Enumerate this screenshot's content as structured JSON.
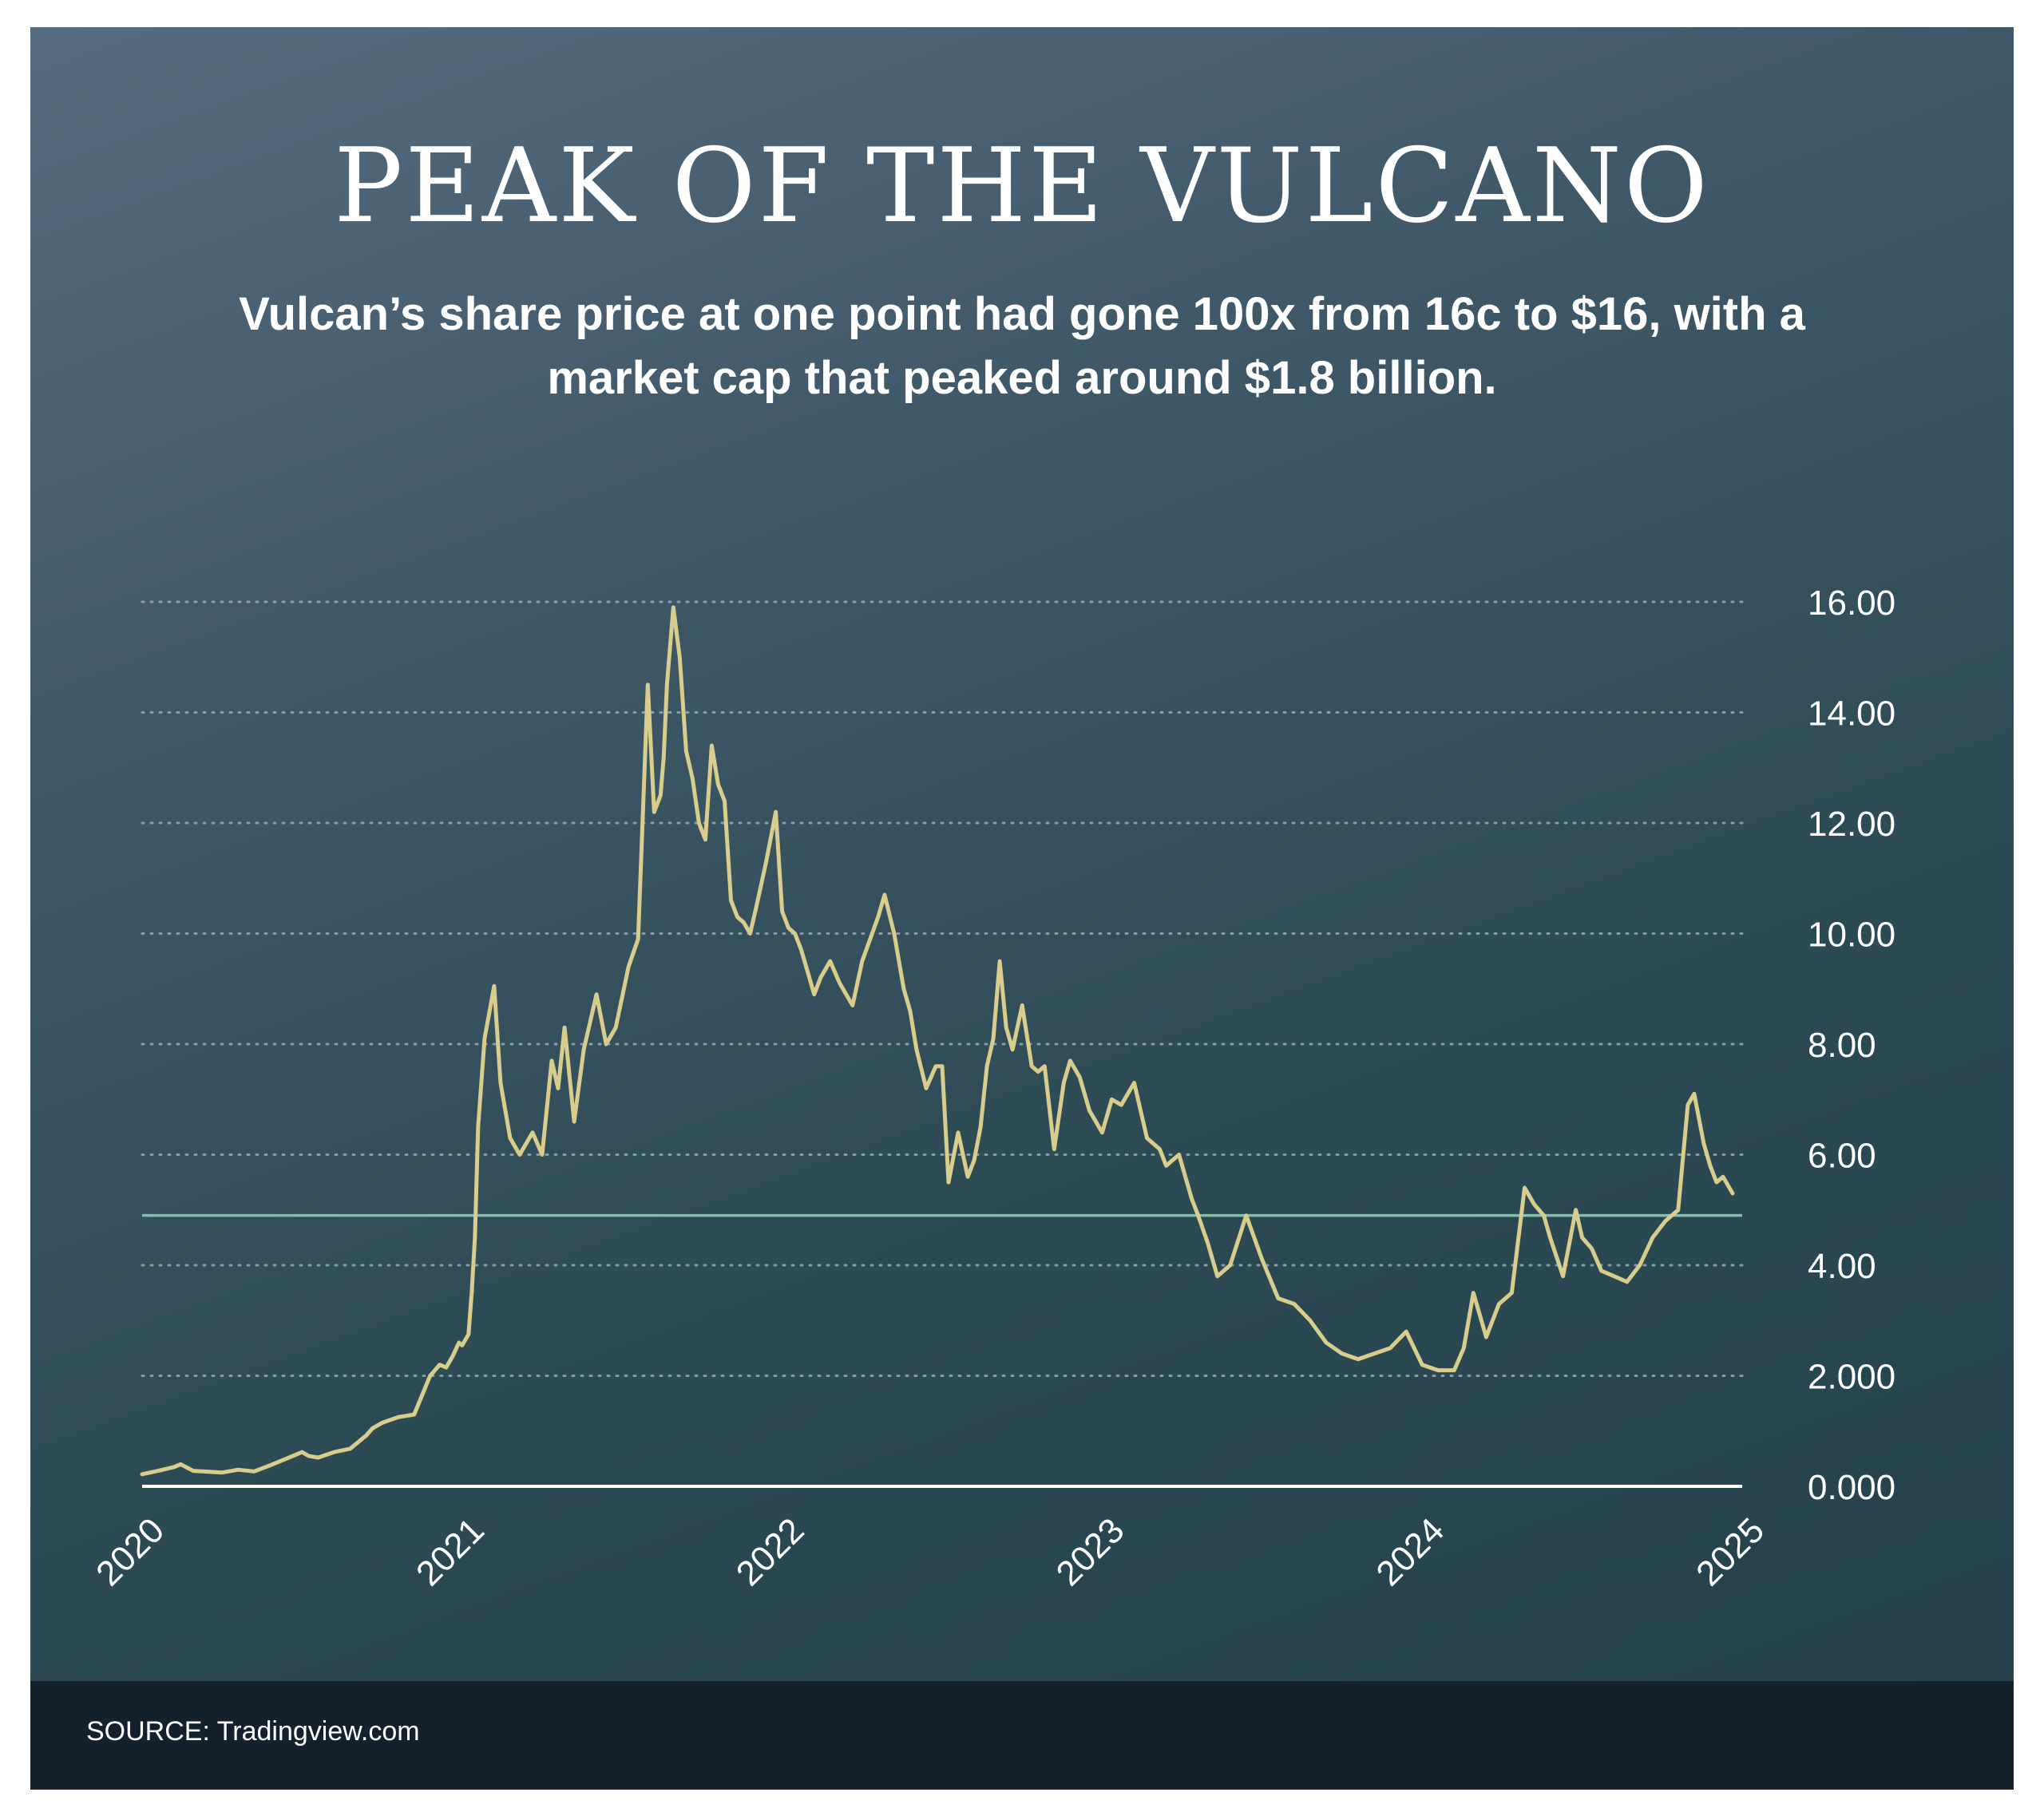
{
  "header": {
    "title": "PEAK OF THE VULCANO",
    "subtitle": "Vulcan’s share price at one point had gone 100x from 16c to $16, with a market cap that peaked around $1.8 billion."
  },
  "footer": {
    "source": "SOURCE: Tradingview.com"
  },
  "chart_data": {
    "type": "line",
    "title": "PEAK OF THE VULCANO",
    "xlabel": "",
    "ylabel": "",
    "x_range": [
      2020.0,
      2025.0
    ],
    "ylim": [
      0,
      16
    ],
    "x_ticks": [
      "2020",
      "2021",
      "2022",
      "2023",
      "2024",
      "2025"
    ],
    "y_ticks": [
      {
        "value": 0,
        "label": "0.000"
      },
      {
        "value": 2,
        "label": "2.000"
      },
      {
        "value": 4,
        "label": "4.00"
      },
      {
        "value": 6,
        "label": "6.00"
      },
      {
        "value": 8,
        "label": "8.00"
      },
      {
        "value": 10,
        "label": "10.00"
      },
      {
        "value": 12,
        "label": "12.00"
      },
      {
        "value": 14,
        "label": "14.00"
      },
      {
        "value": 16,
        "label": "16.00"
      }
    ],
    "grid": true,
    "grid_style": "dotted horizontal",
    "reference_line": {
      "y": 4.9,
      "color": "#7ec4a4"
    },
    "colors": {
      "line": "#d8cd8c",
      "axis": "#ffffff",
      "grid": "#9fb0b8"
    },
    "series": [
      {
        "x": [
          2020.0,
          2020.05,
          2020.1,
          2020.12,
          2020.16,
          2020.25,
          2020.3,
          2020.35,
          2020.4,
          2020.45,
          2020.5,
          2020.52,
          2020.55,
          2020.6,
          2020.65,
          2020.7,
          2020.72,
          2020.75,
          2020.8,
          2020.85,
          2020.9,
          2020.93,
          2020.95,
          2020.97,
          2020.99,
          2021.0,
          2021.02,
          2021.03,
          2021.04,
          2021.05,
          2021.07,
          2021.1,
          2021.12,
          2021.15,
          2021.18,
          2021.22,
          2021.25,
          2021.28,
          2021.3,
          2021.32,
          2021.35,
          2021.38,
          2021.42,
          2021.45,
          2021.48,
          2021.52,
          2021.55,
          2021.58,
          2021.6,
          2021.62,
          2021.63,
          2021.64,
          2021.66,
          2021.68,
          2021.7,
          2021.72,
          2021.74,
          2021.76,
          2021.78,
          2021.8,
          2021.82,
          2021.84,
          2021.86,
          2021.88,
          2021.9,
          2021.92,
          2021.95,
          2021.98,
          2022.0,
          2022.02,
          2022.04,
          2022.06,
          2022.08,
          2022.1,
          2022.12,
          2022.15,
          2022.18,
          2022.22,
          2022.25,
          2022.3,
          2022.32,
          2022.35,
          2022.38,
          2022.4,
          2022.42,
          2022.45,
          2022.48,
          2022.5,
          2022.52,
          2022.55,
          2022.58,
          2022.6,
          2022.62,
          2022.64,
          2022.66,
          2022.68,
          2022.7,
          2022.72,
          2022.75,
          2022.78,
          2022.8,
          2022.82,
          2022.85,
          2022.88,
          2022.9,
          2022.93,
          2022.96,
          2023.0,
          2023.03,
          2023.06,
          2023.1,
          2023.14,
          2023.18,
          2023.2,
          2023.24,
          2023.28,
          2023.3,
          2023.33,
          2023.36,
          2023.4,
          2023.45,
          2023.5,
          2023.55,
          2023.6,
          2023.65,
          2023.7,
          2023.75,
          2023.8,
          2023.85,
          2023.9,
          2023.95,
          2024.0,
          2024.05,
          2024.1,
          2024.13,
          2024.16,
          2024.2,
          2024.24,
          2024.28,
          2024.32,
          2024.35,
          2024.38,
          2024.4,
          2024.44,
          2024.48,
          2024.5,
          2024.53,
          2024.56,
          2024.6,
          2024.64,
          2024.68,
          2024.72,
          2024.76,
          2024.8,
          2024.83,
          2024.85,
          2024.88,
          2024.9,
          2024.92,
          2024.94,
          2024.97
        ],
        "y": [
          0.22,
          0.28,
          0.35,
          0.4,
          0.28,
          0.25,
          0.3,
          0.27,
          0.38,
          0.5,
          0.62,
          0.55,
          0.52,
          0.62,
          0.68,
          0.92,
          1.05,
          1.15,
          1.25,
          1.3,
          2.0,
          2.2,
          2.15,
          2.35,
          2.6,
          2.55,
          2.75,
          3.5,
          4.5,
          6.5,
          8.1,
          9.05,
          7.3,
          6.3,
          6.0,
          6.4,
          6.0,
          7.7,
          7.2,
          8.3,
          6.6,
          7.9,
          8.9,
          8.0,
          8.3,
          9.4,
          9.9,
          14.5,
          12.2,
          12.5,
          13.2,
          14.5,
          15.9,
          15.0,
          13.3,
          12.8,
          12.0,
          11.7,
          13.4,
          12.7,
          12.4,
          10.6,
          10.3,
          10.2,
          10.0,
          10.5,
          11.3,
          12.2,
          10.4,
          10.1,
          10.0,
          9.7,
          9.3,
          8.9,
          9.2,
          9.5,
          9.1,
          8.7,
          9.5,
          10.3,
          10.7,
          10.0,
          9.0,
          8.6,
          7.9,
          7.2,
          7.6,
          7.6,
          5.5,
          6.4,
          5.6,
          5.9,
          6.5,
          7.6,
          8.1,
          9.5,
          8.3,
          7.9,
          8.7,
          7.6,
          7.5,
          7.6,
          6.1,
          7.3,
          7.7,
          7.4,
          6.8,
          6.4,
          7.0,
          6.9,
          7.3,
          6.3,
          6.1,
          5.8,
          6.0,
          5.2,
          4.9,
          4.4,
          3.8,
          4.0,
          4.9,
          4.1,
          3.4,
          3.3,
          3.0,
          2.6,
          2.4,
          2.3,
          2.4,
          2.5,
          2.8,
          2.2,
          2.1,
          2.1,
          2.5,
          3.5,
          2.7,
          3.3,
          3.5,
          5.4,
          5.1,
          4.9,
          4.5,
          3.8,
          5.0,
          4.5,
          4.3,
          3.9,
          3.8,
          3.7,
          4.0,
          4.5,
          4.8,
          5.0,
          6.9,
          7.1,
          6.2,
          5.8,
          5.5,
          5.6,
          5.3
        ]
      }
    ]
  }
}
